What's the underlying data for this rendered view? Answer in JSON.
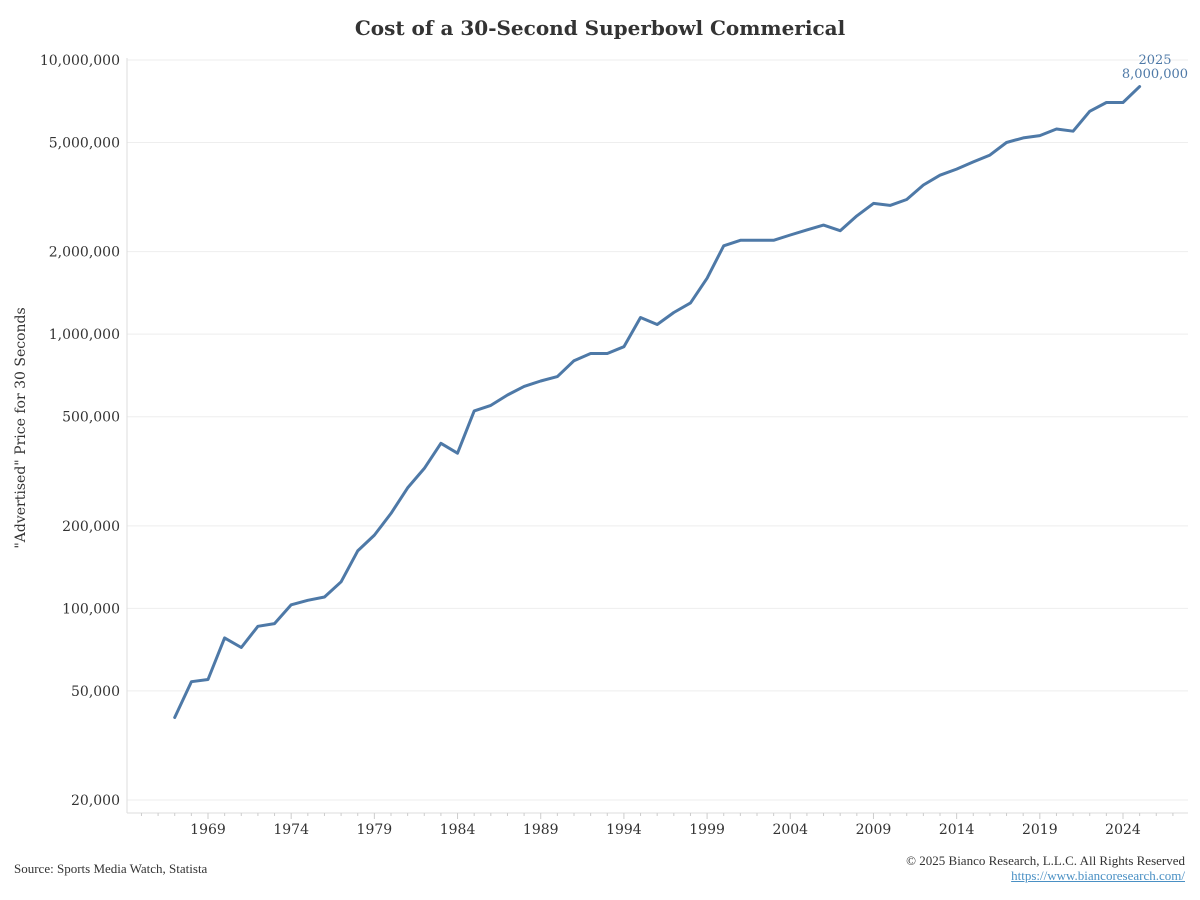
{
  "chart_data": {
    "type": "line",
    "title": "Cost of a 30-Second Superbowl Commerical",
    "ylabel": "\"Advertised\" Price for 30 Seconds",
    "xlabel": "",
    "yscale": "log",
    "ylim": [
      18000,
      10000000
    ],
    "xlim": [
      1964.5,
      2028.5
    ],
    "yticks": [
      20000,
      50000,
      100000,
      200000,
      500000,
      1000000,
      2000000,
      5000000,
      10000000
    ],
    "ytick_labels": [
      "20,000",
      "50,000",
      "100,000",
      "200,000",
      "500,000",
      "1,000,000",
      "2,000,000",
      "5,000,000",
      "10,000,000"
    ],
    "xticks": [
      1969,
      1974,
      1979,
      1984,
      1989,
      1994,
      1999,
      2004,
      2009,
      2014,
      2019,
      2024
    ],
    "xtick_labels": [
      "1969",
      "1974",
      "1979",
      "1984",
      "1989",
      "1994",
      "1999",
      "2004",
      "2009",
      "2014",
      "2019",
      "2024"
    ],
    "grid": true,
    "color": "#4e79a7",
    "x": [
      1967,
      1968,
      1969,
      1970,
      1971,
      1972,
      1973,
      1974,
      1975,
      1976,
      1977,
      1978,
      1979,
      1980,
      1981,
      1982,
      1983,
      1984,
      1985,
      1986,
      1987,
      1988,
      1989,
      1990,
      1991,
      1992,
      1993,
      1994,
      1995,
      1996,
      1997,
      1998,
      1999,
      2000,
      2001,
      2002,
      2003,
      2004,
      2005,
      2006,
      2007,
      2008,
      2009,
      2010,
      2011,
      2012,
      2013,
      2014,
      2015,
      2016,
      2017,
      2018,
      2019,
      2020,
      2021,
      2022,
      2023,
      2024,
      2025
    ],
    "y": [
      40000,
      54000,
      55000,
      78000,
      72000,
      86000,
      88000,
      103000,
      107000,
      110000,
      125000,
      162000,
      185000,
      222000,
      275000,
      324000,
      400000,
      368000,
      525000,
      550000,
      600000,
      645000,
      675000,
      700000,
      800000,
      850000,
      850000,
      900000,
      1150000,
      1085000,
      1200000,
      1300000,
      1600000,
      2100000,
      2200000,
      2200000,
      2200000,
      2300000,
      2400000,
      2500000,
      2385000,
      2700000,
      3000000,
      2950000,
      3100000,
      3500000,
      3800000,
      4000000,
      4250000,
      4500000,
      5000000,
      5200000,
      5300000,
      5600000,
      5500000,
      6500000,
      7000000,
      7000000,
      8000000
    ],
    "annotation": {
      "year_label": "2025",
      "value_label": "8,000,000"
    }
  },
  "footer": {
    "source": "Source: Sports Media Watch, Statista",
    "copyright": "© 2025 Bianco Research, L.L.C. All Rights Reserved",
    "website": "https://www.biancoresearch.com/"
  }
}
